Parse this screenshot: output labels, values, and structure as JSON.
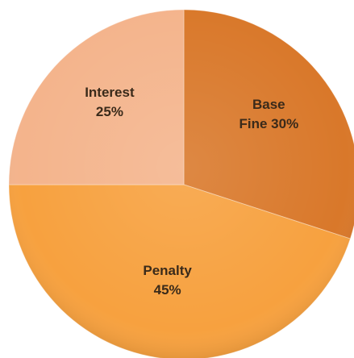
{
  "chart_data": {
    "type": "pie",
    "categories": [
      "Base Fine",
      "Penalty",
      "Interest"
    ],
    "values": [
      30,
      45,
      25
    ],
    "value_labels": [
      "30%",
      "45%",
      "25%"
    ],
    "colors": [
      "#d9782a",
      "#f7a13f",
      "#f4b48c"
    ]
  }
}
